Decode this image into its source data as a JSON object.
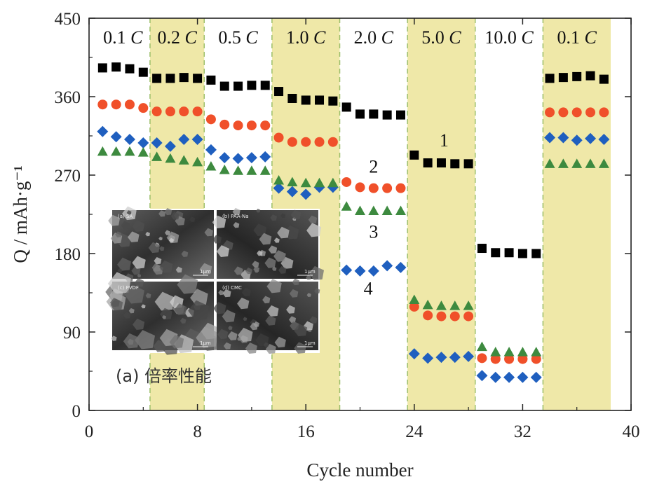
{
  "chart_data": {
    "type": "scatter",
    "xlabel": "Cycle number",
    "ylabel": "Q / mAh·g⁻¹",
    "xlim": [
      0,
      40
    ],
    "ylim": [
      0,
      450
    ],
    "xticks": [
      0,
      8,
      16,
      24,
      32,
      40
    ],
    "yticks": [
      0,
      90,
      180,
      270,
      360,
      450
    ],
    "grid": false,
    "rate_segments": [
      {
        "label": "0.1 C",
        "x_start": 0.5,
        "x_end": 4.5,
        "shaded": false
      },
      {
        "label": "0.2 C",
        "x_start": 4.5,
        "x_end": 8.5,
        "shaded": true
      },
      {
        "label": "0.5 C",
        "x_start": 8.5,
        "x_end": 13.5,
        "shaded": false
      },
      {
        "label": "1.0 C",
        "x_start": 13.5,
        "x_end": 18.5,
        "shaded": true
      },
      {
        "label": "2.0 C",
        "x_start": 18.5,
        "x_end": 23.5,
        "shaded": false
      },
      {
        "label": "5.0 C",
        "x_start": 23.5,
        "x_end": 28.5,
        "shaded": true
      },
      {
        "label": "10.0 C",
        "x_start": 28.5,
        "x_end": 33.5,
        "shaded": false
      },
      {
        "label": "0.1 C",
        "x_start": 33.5,
        "x_end": 38.5,
        "shaded": true
      }
    ],
    "series": [
      {
        "marker": "square",
        "color": "#000000",
        "x": [
          1,
          2,
          3,
          4,
          5,
          6,
          7,
          8,
          9,
          10,
          11,
          12,
          13,
          14,
          15,
          16,
          17,
          18,
          19,
          20,
          21,
          22,
          23,
          24,
          25,
          26,
          27,
          28,
          29,
          30,
          31,
          32,
          33,
          34,
          35,
          36,
          37,
          38
        ],
        "y": [
          393,
          394,
          392,
          388,
          381,
          381,
          382,
          381,
          379,
          372,
          372,
          373,
          373,
          366,
          358,
          356,
          356,
          355,
          348,
          340,
          340,
          339,
          339,
          293,
          284,
          284,
          283,
          283,
          186,
          181,
          181,
          180,
          180,
          381,
          382,
          383,
          384,
          380
        ]
      },
      {
        "marker": "circle",
        "color": "#f0502a",
        "x": [
          1,
          2,
          3,
          4,
          5,
          6,
          7,
          8,
          9,
          10,
          11,
          12,
          13,
          14,
          15,
          16,
          17,
          18,
          19,
          20,
          21,
          22,
          23,
          24,
          25,
          26,
          27,
          28,
          29,
          30,
          31,
          32,
          33,
          34,
          35,
          36,
          37,
          38
        ],
        "y": [
          351,
          351,
          351,
          347,
          343,
          343,
          343,
          343,
          334,
          328,
          327,
          327,
          327,
          313,
          308,
          308,
          308,
          308,
          262,
          256,
          255,
          255,
          255,
          119,
          109,
          108,
          108,
          108,
          60,
          59,
          59,
          59,
          59,
          342,
          342,
          342,
          342,
          342
        ]
      },
      {
        "marker": "diamond",
        "color": "#1f5fbf",
        "x": [
          1,
          2,
          3,
          4,
          5,
          6,
          7,
          8,
          9,
          10,
          11,
          12,
          13,
          14,
          15,
          16,
          17,
          18,
          19,
          20,
          21,
          22,
          23,
          24,
          25,
          26,
          27,
          28,
          29,
          30,
          31,
          32,
          33,
          34,
          35,
          36,
          37,
          38
        ],
        "y": [
          320,
          314,
          311,
          307,
          307,
          303,
          311,
          311,
          299,
          290,
          289,
          290,
          291,
          255,
          251,
          248,
          256,
          256,
          161,
          160,
          160,
          166,
          164,
          65,
          60,
          61,
          61,
          62,
          40,
          38,
          38,
          38,
          38,
          313,
          313,
          310,
          312,
          311
        ]
      },
      {
        "marker": "triangle",
        "color": "#3d8a3f",
        "x": [
          1,
          2,
          3,
          4,
          5,
          6,
          7,
          8,
          9,
          10,
          11,
          12,
          13,
          14,
          15,
          16,
          17,
          18,
          19,
          20,
          21,
          22,
          23,
          24,
          25,
          26,
          27,
          28,
          29,
          30,
          31,
          32,
          33,
          34,
          35,
          36,
          37,
          38
        ],
        "y": [
          297,
          297,
          297,
          296,
          291,
          289,
          287,
          285,
          280,
          276,
          275,
          275,
          275,
          264,
          262,
          261,
          261,
          261,
          234,
          229,
          229,
          229,
          229,
          127,
          121,
          120,
          120,
          120,
          73,
          67,
          67,
          67,
          67,
          283,
          283,
          283,
          283,
          283
        ]
      }
    ],
    "series_labels": [
      {
        "text": "1",
        "x": 26.2,
        "y": 303
      },
      {
        "text": "2",
        "x": 21.0,
        "y": 273
      },
      {
        "text": "3",
        "x": 21.0,
        "y": 198
      },
      {
        "text": "4",
        "x": 20.6,
        "y": 133
      }
    ],
    "inset": {
      "title": "(a) 倍率性能",
      "panels": [
        "(a) SA",
        "(b) PAA-Na",
        "(c) PVDF",
        "(d) CMC"
      ],
      "scale_bar": "1μm"
    }
  }
}
